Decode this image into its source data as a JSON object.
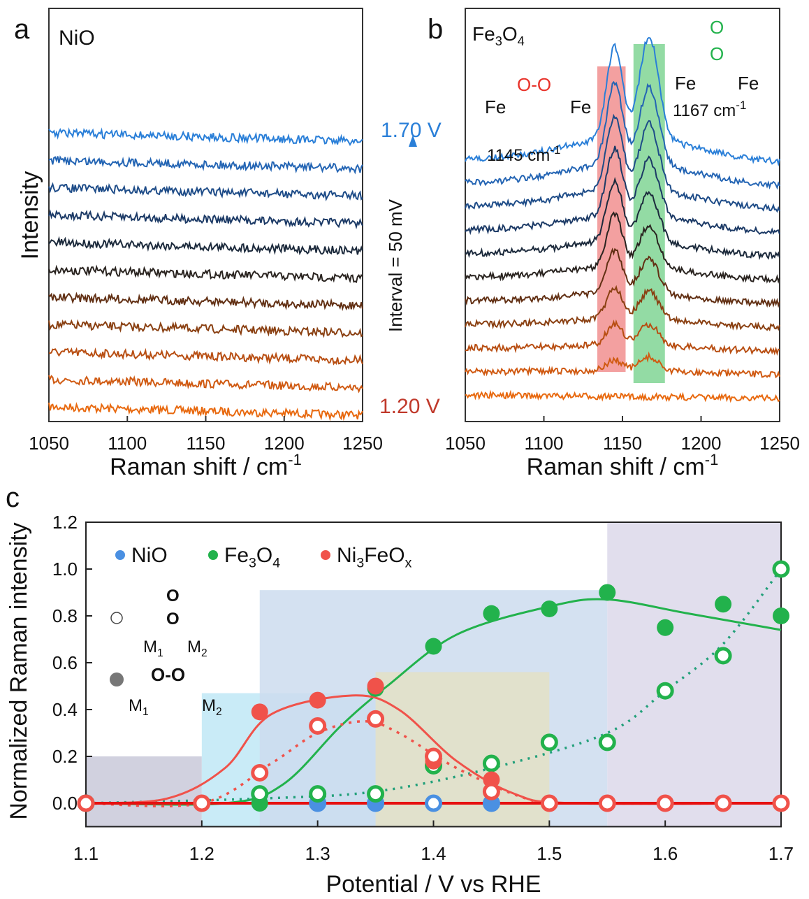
{
  "chart_data": [
    {
      "panel": "a",
      "type": "line",
      "title": "NiO",
      "xlabel": "Raman shift / cm",
      "xlabel_sup": "-1",
      "ylabel": "Intensity",
      "xlim": [
        1050,
        1250
      ],
      "xticks": [
        1050,
        1100,
        1150,
        1200,
        1250
      ],
      "potentials_V": [
        1.2,
        1.25,
        1.3,
        1.35,
        1.4,
        1.45,
        1.5,
        1.55,
        1.6,
        1.65,
        1.7
      ],
      "peaks": []
    },
    {
      "panel": "b",
      "type": "line",
      "title_parts": [
        "Fe",
        "3",
        "O",
        "4"
      ],
      "xlabel": "Raman shift / cm",
      "xlabel_sup": "-1",
      "xlim": [
        1050,
        1250
      ],
      "xticks": [
        1050,
        1100,
        1150,
        1200,
        1250
      ],
      "potentials_V": [
        1.2,
        1.25,
        1.3,
        1.35,
        1.4,
        1.45,
        1.5,
        1.55,
        1.6,
        1.65,
        1.7
      ],
      "peaks": [
        {
          "position": 1145,
          "label": "1145 cm",
          "sup": "-1",
          "color": "#ef8080",
          "amplitude_au": [
            0,
            0.15,
            0.3,
            0.45,
            0.6,
            0.75,
            0.85,
            0.95,
            1.05,
            1.15,
            1.3
          ]
        },
        {
          "position": 1167,
          "label": "1167 cm",
          "sup": "-1",
          "color": "#6fcf85",
          "amplitude_au": [
            0,
            0.2,
            0.3,
            0.4,
            0.5,
            0.6,
            0.7,
            0.8,
            0.95,
            1.1,
            1.45
          ]
        }
      ],
      "structures": [
        {
          "top": "O-O",
          "bottom_left": "Fe",
          "bottom_right": "Fe",
          "color": "#e8322a"
        },
        {
          "top": "O",
          "middle": "O",
          "bottom_left": "Fe",
          "bottom_right": "Fe",
          "color": "#22b24c"
        }
      ]
    },
    {
      "panel": "c",
      "type": "scatter",
      "xlabel": "Potential / V vs RHE",
      "ylabel": "Normalized Raman intensity",
      "xlim": [
        1.1,
        1.7
      ],
      "ylim": [
        -0.1,
        1.2
      ],
      "xticks": [
        1.1,
        1.2,
        1.3,
        1.4,
        1.5,
        1.6,
        1.7
      ],
      "yticks": [
        0.0,
        0.2,
        0.4,
        0.6,
        0.8,
        1.0,
        1.2
      ],
      "regions": [
        {
          "x": [
            1.1,
            1.2
          ],
          "ymax": 0.2,
          "color": "#c9c9d9"
        },
        {
          "x": [
            1.2,
            1.35
          ],
          "ymax": 0.47,
          "color": "#bfe7f6"
        },
        {
          "x": [
            1.25,
            1.55
          ],
          "ymax": 0.91,
          "color": "#cddcee"
        },
        {
          "x": [
            1.35,
            1.5
          ],
          "ymax": 0.56,
          "color": "#e3e0c6"
        },
        {
          "x": [
            1.55,
            1.7
          ],
          "ymax": 1.2,
          "color": "#dcd8ea"
        }
      ],
      "legend": [
        {
          "name": "NiO",
          "color": "#4a90e2"
        },
        {
          "name_parts": [
            "Fe",
            "3",
            "O",
            "4"
          ],
          "color": "#22b24c"
        },
        {
          "name_parts": [
            "Ni",
            "3",
            "FeO",
            "x"
          ],
          "color": "#f0524a"
        }
      ],
      "marker_key": {
        "open": "M1 O M2 (O on top, single)",
        "open_labels": [
          "O",
          "O",
          "M",
          "1",
          "M",
          "2"
        ],
        "filled_labels": [
          "O-O",
          "M",
          "1",
          "M",
          "2"
        ]
      },
      "x": [
        1.1,
        1.15,
        1.2,
        1.25,
        1.3,
        1.35,
        1.4,
        1.45,
        1.5,
        1.55,
        1.6,
        1.65,
        1.7
      ],
      "series": [
        {
          "name": "NiO",
          "marker": "open",
          "color": "#4a90e2",
          "values": [
            0,
            null,
            null,
            null,
            0,
            0,
            0,
            0,
            null,
            null,
            null,
            null,
            null
          ]
        },
        {
          "name": "NiO",
          "marker": "filled",
          "color": "#4a90e2",
          "values": [
            null,
            null,
            null,
            null,
            0,
            0,
            null,
            0,
            null,
            null,
            null,
            null,
            null
          ]
        },
        {
          "name": "Fe3O4",
          "marker": "filled",
          "color": "#22b24c",
          "values": [
            null,
            null,
            null,
            0,
            null,
            0.49,
            0.67,
            0.81,
            0.83,
            0.9,
            0.75,
            0.85,
            0.8
          ],
          "fit": "solid"
        },
        {
          "name": "Fe3O4",
          "marker": "open",
          "color": "#22b24c",
          "values": [
            0,
            null,
            null,
            0.04,
            0.04,
            0.04,
            0.16,
            0.17,
            0.26,
            0.26,
            0.48,
            0.63,
            1.0
          ],
          "fit": "dotted"
        },
        {
          "name": "Ni3FeOx",
          "marker": "filled",
          "color": "#f0524a",
          "values": [
            null,
            null,
            null,
            0.39,
            0.44,
            0.5,
            0.18,
            0.1,
            0,
            0,
            0,
            0,
            0
          ],
          "fit": "solid"
        },
        {
          "name": "Ni3FeOx",
          "marker": "open",
          "color": "#f0524a",
          "values": [
            0,
            null,
            0,
            0.13,
            0.33,
            0.36,
            0.2,
            0.05,
            0,
            0,
            0,
            0,
            0
          ],
          "fit": "dotted"
        }
      ]
    }
  ],
  "panel_labels": [
    "a",
    "b",
    "c"
  ],
  "arrow": {
    "top": "1.70 V",
    "bottom": "1.20 V",
    "label": "Interval = 50 mV",
    "top_color": "#2a7fd8",
    "bottom_color": "#c0392b"
  }
}
